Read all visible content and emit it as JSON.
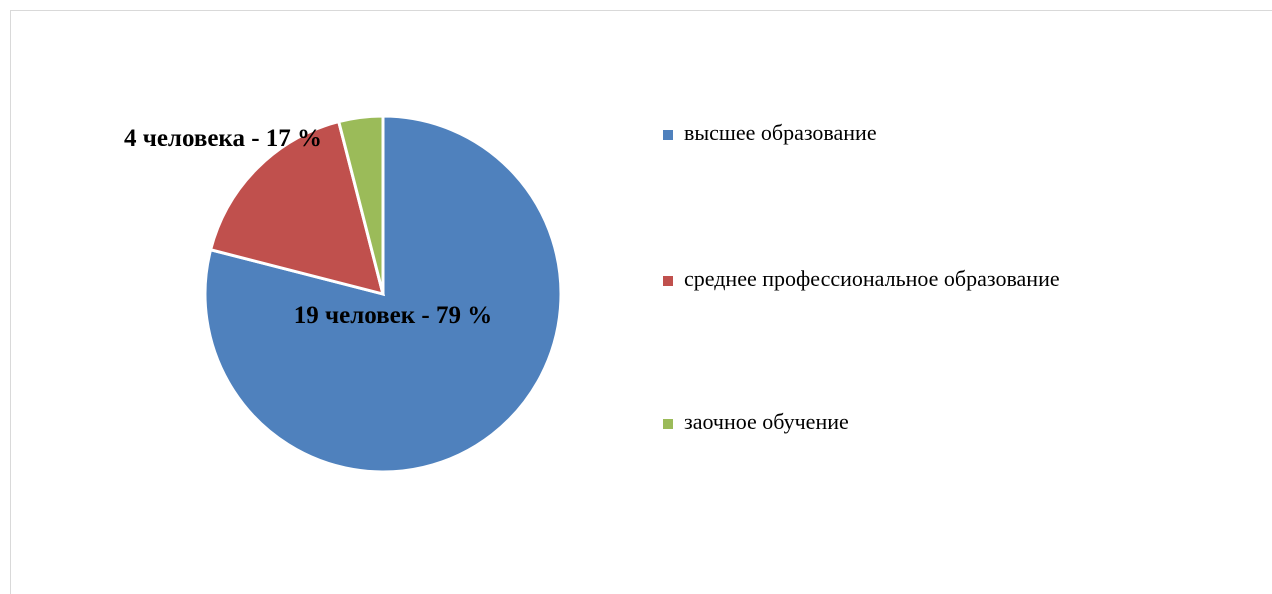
{
  "chart_data": {
    "type": "pie",
    "categories": [
      "высшее образование",
      "среднее профессиональное образование",
      "заочное обучение"
    ],
    "values": [
      79,
      17,
      4
    ],
    "value_labels": [
      "19 человек - 79 %",
      "4 человека - 17 %",
      null
    ],
    "colors": [
      "#4f81bd",
      "#c0504d",
      "#9bbb59"
    ],
    "legend": "right"
  }
}
